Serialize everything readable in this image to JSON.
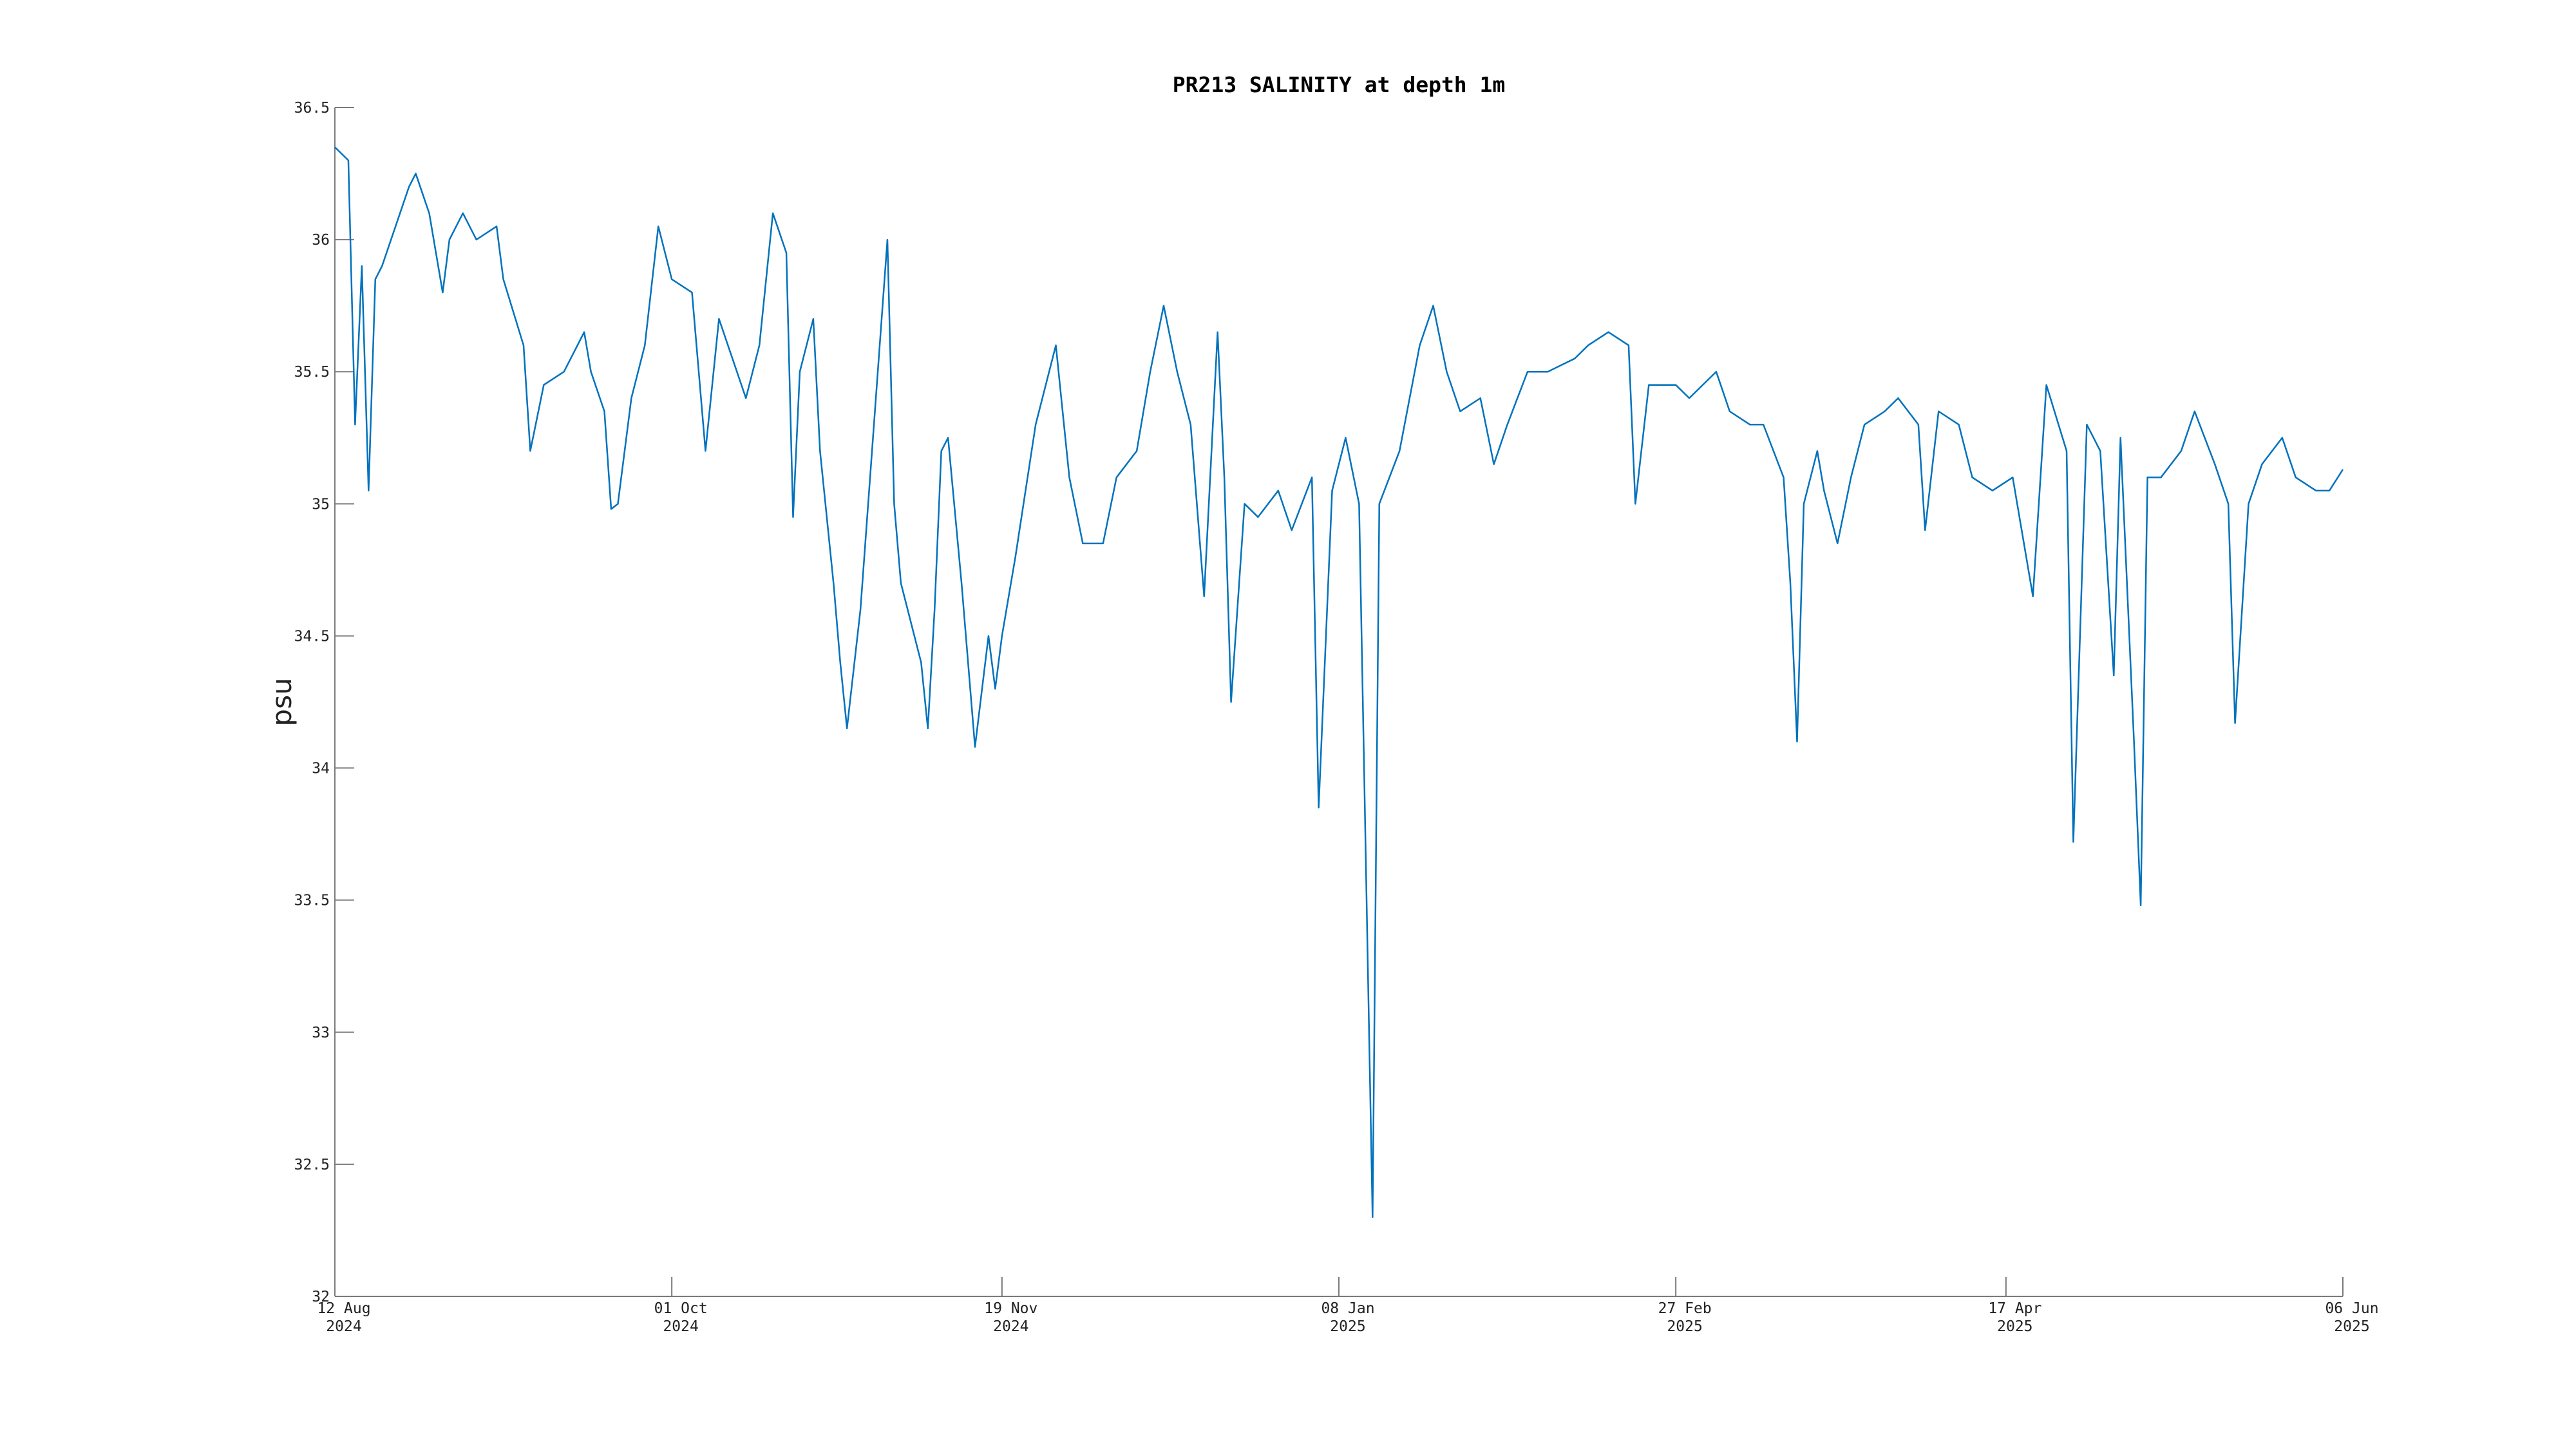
{
  "chart_data": {
    "type": "line",
    "title": "PR213 SALINITY at depth 1m",
    "ylabel": "psu",
    "color": "#0072bd",
    "x": [
      "2024-08-12",
      "2024-08-14",
      "2024-08-15",
      "2024-08-16",
      "2024-08-17",
      "2024-08-18",
      "2024-08-19",
      "2024-08-21",
      "2024-08-23",
      "2024-08-24",
      "2024-08-26",
      "2024-08-28",
      "2024-08-29",
      "2024-08-31",
      "2024-09-02",
      "2024-09-05",
      "2024-09-06",
      "2024-09-09",
      "2024-09-10",
      "2024-09-12",
      "2024-09-15",
      "2024-09-18",
      "2024-09-19",
      "2024-09-21",
      "2024-09-22",
      "2024-09-23",
      "2024-09-25",
      "2024-09-27",
      "2024-09-29",
      "2024-10-01",
      "2024-10-04",
      "2024-10-06",
      "2024-10-08",
      "2024-10-12",
      "2024-10-14",
      "2024-10-16",
      "2024-10-18",
      "2024-10-19",
      "2024-10-20",
      "2024-10-22",
      "2024-10-23",
      "2024-10-25",
      "2024-10-26",
      "2024-10-27",
      "2024-10-29",
      "2024-10-31",
      "2024-11-02",
      "2024-11-03",
      "2024-11-04",
      "2024-11-07",
      "2024-11-08",
      "2024-11-09",
      "2024-11-10",
      "2024-11-11",
      "2024-11-13",
      "2024-11-15",
      "2024-11-17",
      "2024-11-18",
      "2024-11-19",
      "2024-11-21",
      "2024-11-24",
      "2024-11-27",
      "2024-11-29",
      "2024-12-01",
      "2024-12-04",
      "2024-12-06",
      "2024-12-09",
      "2024-12-11",
      "2024-12-13",
      "2024-12-15",
      "2024-12-17",
      "2024-12-19",
      "2024-12-21",
      "2024-12-22",
      "2024-12-23",
      "2024-12-25",
      "2024-12-27",
      "2024-12-30",
      "2025-01-01",
      "2025-01-04",
      "2025-01-05",
      "2025-01-07",
      "2025-01-09",
      "2025-01-11",
      "2025-01-13",
      "2025-01-14",
      "2025-01-17",
      "2025-01-20",
      "2025-01-22",
      "2025-01-24",
      "2025-01-26",
      "2025-01-29",
      "2025-01-31",
      "2025-02-02",
      "2025-02-05",
      "2025-02-08",
      "2025-02-12",
      "2025-02-14",
      "2025-02-17",
      "2025-02-20",
      "2025-02-21",
      "2025-02-23",
      "2025-02-27",
      "2025-03-01",
      "2025-03-05",
      "2025-03-07",
      "2025-03-10",
      "2025-03-12",
      "2025-03-15",
      "2025-03-16",
      "2025-03-17",
      "2025-03-18",
      "2025-03-20",
      "2025-03-21",
      "2025-03-23",
      "2025-03-25",
      "2025-03-27",
      "2025-03-30",
      "2025-04-01",
      "2025-04-04",
      "2025-04-05",
      "2025-04-07",
      "2025-04-10",
      "2025-04-12",
      "2025-04-15",
      "2025-04-18",
      "2025-04-21",
      "2025-04-23",
      "2025-04-26",
      "2025-04-27",
      "2025-04-29",
      "2025-05-01",
      "2025-05-03",
      "2025-05-04",
      "2025-05-06",
      "2025-05-07",
      "2025-05-08",
      "2025-05-10",
      "2025-05-13",
      "2025-05-15",
      "2025-05-18",
      "2025-05-20",
      "2025-05-21",
      "2025-05-23",
      "2025-05-25",
      "2025-05-28",
      "2025-05-30",
      "2025-06-02",
      "2025-06-04",
      "2025-06-06"
    ],
    "values": [
      36.35,
      36.3,
      35.3,
      35.9,
      35.05,
      35.85,
      35.9,
      36.05,
      36.2,
      36.25,
      36.1,
      35.8,
      36.0,
      36.1,
      36.0,
      36.05,
      35.85,
      35.6,
      35.2,
      35.45,
      35.5,
      35.65,
      35.5,
      35.35,
      34.98,
      35.0,
      35.4,
      35.6,
      36.05,
      35.85,
      35.8,
      35.2,
      35.7,
      35.4,
      35.6,
      36.1,
      35.95,
      34.95,
      35.5,
      35.7,
      35.2,
      34.7,
      34.4,
      34.15,
      34.6,
      35.3,
      36.0,
      35.0,
      34.7,
      34.4,
      34.15,
      34.6,
      35.2,
      35.25,
      34.7,
      34.08,
      34.5,
      34.3,
      34.5,
      34.8,
      35.3,
      35.6,
      35.1,
      34.85,
      34.85,
      35.1,
      35.2,
      35.5,
      35.75,
      35.5,
      35.3,
      34.65,
      35.65,
      35.1,
      34.25,
      35.0,
      34.95,
      35.05,
      34.9,
      35.1,
      33.85,
      35.05,
      35.25,
      35.0,
      32.3,
      35.0,
      35.2,
      35.6,
      35.75,
      35.5,
      35.35,
      35.4,
      35.15,
      35.3,
      35.5,
      35.5,
      35.55,
      35.6,
      35.65,
      35.6,
      35.0,
      35.45,
      35.45,
      35.4,
      35.5,
      35.35,
      35.3,
      35.3,
      35.1,
      34.7,
      34.1,
      35.0,
      35.2,
      35.05,
      34.85,
      35.1,
      35.3,
      35.35,
      35.4,
      35.3,
      34.9,
      35.35,
      35.3,
      35.1,
      35.05,
      35.1,
      34.65,
      35.45,
      35.2,
      33.72,
      35.3,
      35.2,
      34.35,
      35.25,
      34.1,
      33.48,
      35.1,
      35.1,
      35.2,
      35.35,
      35.15,
      35.0,
      34.17,
      35.0,
      35.15,
      35.25,
      35.1,
      35.05,
      35.05,
      35.13
    ],
    "xlim": [
      "2024-08-12",
      "2025-06-06"
    ],
    "xticks": [
      {
        "value": "2024-08-12",
        "label": "12 Aug\n2024"
      },
      {
        "value": "2024-10-01",
        "label": "01 Oct\n2024"
      },
      {
        "value": "2024-11-19",
        "label": "19 Nov\n2024"
      },
      {
        "value": "2025-01-08",
        "label": "08 Jan\n2025"
      },
      {
        "value": "2025-02-27",
        "label": "27 Feb\n2025"
      },
      {
        "value": "2025-04-17",
        "label": "17 Apr\n2025"
      },
      {
        "value": "2025-06-06",
        "label": "06 Jun\n2025"
      }
    ],
    "ylim": [
      32,
      36.5
    ],
    "yticks": [
      32,
      32.5,
      33,
      33.5,
      34,
      34.5,
      35,
      35.5,
      36,
      36.5
    ],
    "grid": false
  }
}
